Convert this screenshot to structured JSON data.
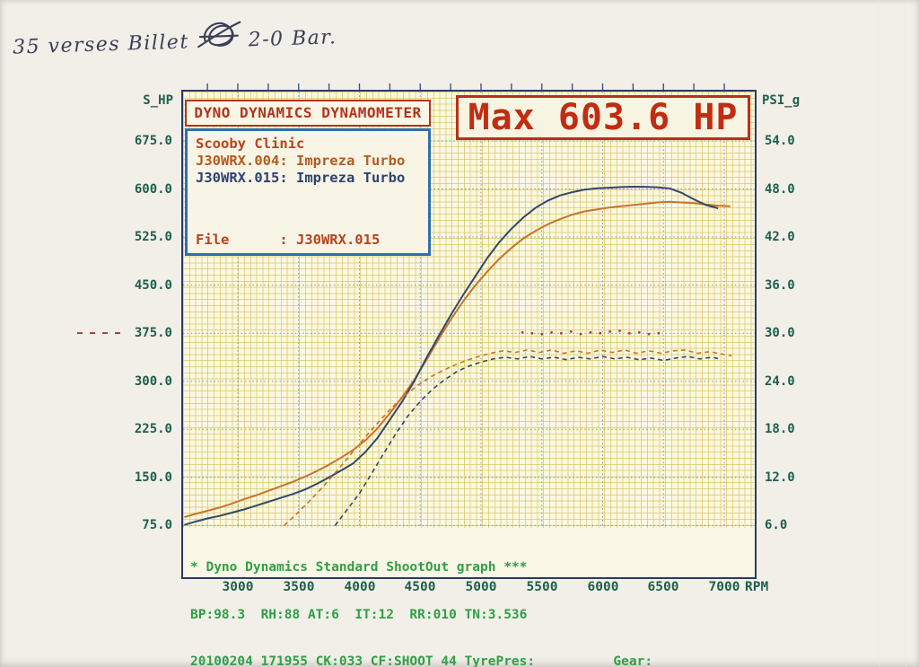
{
  "handwritten_note": {
    "before_scribble": "35 verses Billet",
    "after_scribble": "2-0 Bar."
  },
  "title_box": {
    "label": "DYNO DYNAMICS DYNAMOMETER"
  },
  "max_box": {
    "label": "Max 603.6 HP"
  },
  "legend": {
    "shop": "Scooby Clinic",
    "run1": "J30WRX.004: Impreza Turbo",
    "run2": "J30WRX.015: Impreza Turbo",
    "file_line": "File      : J30WRX.015"
  },
  "axes": {
    "left_title": "S_HP",
    "right_title": "PSI_g",
    "x_unit": "RPM"
  },
  "footer": {
    "line1": "* Dyno Dynamics Standard ShootOut graph ***",
    "line2": "BP:98.3  RH:88 AT:6  IT:12  RR:010 TN:3.536",
    "line3": "20100204 171955 CK:033 CF:SHOOT_44 TyrePres: ________ Gear: ________"
  },
  "colors": {
    "paper": "#f1efe8",
    "plot_bg": "#fbf8e2",
    "fine_grid": "#d5c156",
    "major_grid": "#7d92bf",
    "frame": "#2b3a66",
    "red": "#b5321c",
    "max_red": "#c22c12",
    "orange_curve": "#c8732a",
    "blue_curve": "#32486e",
    "axis_green": "#1e5f4e",
    "footer_green": "#2f9f47",
    "dot_red": "#b04030",
    "ink": "#3b3f58"
  },
  "chart_data": {
    "type": "line",
    "title": "Dyno Dynamics Standard ShootOut graph",
    "x_ticks": [
      3000,
      3500,
      4000,
      4500,
      5000,
      5500,
      6000,
      6500,
      7000
    ],
    "x_unit": "RPM",
    "left_axis": {
      "title": "S_HP",
      "ticks": [
        675,
        600,
        525,
        450,
        375,
        300,
        225,
        150,
        75
      ]
    },
    "right_axis": {
      "title": "PSI_g",
      "ticks": [
        54,
        48,
        42,
        36,
        30,
        24,
        18,
        12,
        6
      ]
    },
    "left_marker_hp": 375,
    "max_annotation_hp": 603.6,
    "series": [
      {
        "name": "J30WRX.004 power",
        "axis": "left",
        "style": "solid",
        "color_key": "orange_curve",
        "points": [
          [
            2560,
            88
          ],
          [
            2650,
            93
          ],
          [
            2750,
            98
          ],
          [
            2850,
            103
          ],
          [
            2950,
            109
          ],
          [
            3050,
            116
          ],
          [
            3150,
            122
          ],
          [
            3250,
            129
          ],
          [
            3350,
            136
          ],
          [
            3450,
            143
          ],
          [
            3550,
            151
          ],
          [
            3650,
            160
          ],
          [
            3750,
            170
          ],
          [
            3850,
            181
          ],
          [
            3950,
            193
          ],
          [
            4050,
            208
          ],
          [
            4150,
            227
          ],
          [
            4250,
            250
          ],
          [
            4350,
            275
          ],
          [
            4450,
            302
          ],
          [
            4550,
            333
          ],
          [
            4650,
            365
          ],
          [
            4750,
            396
          ],
          [
            4850,
            424
          ],
          [
            4950,
            449
          ],
          [
            5050,
            471
          ],
          [
            5150,
            491
          ],
          [
            5250,
            508
          ],
          [
            5350,
            523
          ],
          [
            5450,
            535
          ],
          [
            5550,
            545
          ],
          [
            5650,
            553
          ],
          [
            5750,
            560
          ],
          [
            5850,
            565
          ],
          [
            5950,
            568
          ],
          [
            6050,
            571
          ],
          [
            6150,
            573
          ],
          [
            6250,
            575
          ],
          [
            6350,
            577
          ],
          [
            6450,
            579
          ],
          [
            6550,
            580
          ],
          [
            6650,
            579
          ],
          [
            6750,
            578
          ],
          [
            6850,
            576
          ],
          [
            6950,
            574
          ],
          [
            7050,
            573
          ]
        ]
      },
      {
        "name": "J30WRX.015 power",
        "axis": "left",
        "style": "solid",
        "color_key": "blue_curve",
        "points": [
          [
            2560,
            76
          ],
          [
            2650,
            81
          ],
          [
            2750,
            86
          ],
          [
            2850,
            90
          ],
          [
            2950,
            95
          ],
          [
            3050,
            100
          ],
          [
            3150,
            106
          ],
          [
            3250,
            112
          ],
          [
            3350,
            118
          ],
          [
            3450,
            124
          ],
          [
            3550,
            131
          ],
          [
            3650,
            140
          ],
          [
            3750,
            150
          ],
          [
            3850,
            161
          ],
          [
            3950,
            172
          ],
          [
            4050,
            190
          ],
          [
            4150,
            212
          ],
          [
            4250,
            240
          ],
          [
            4350,
            268
          ],
          [
            4450,
            300
          ],
          [
            4550,
            336
          ],
          [
            4650,
            370
          ],
          [
            4750,
            403
          ],
          [
            4850,
            434
          ],
          [
            4950,
            463
          ],
          [
            5050,
            492
          ],
          [
            5150,
            517
          ],
          [
            5250,
            538
          ],
          [
            5350,
            556
          ],
          [
            5450,
            571
          ],
          [
            5550,
            582
          ],
          [
            5650,
            590
          ],
          [
            5750,
            595
          ],
          [
            5850,
            599
          ],
          [
            5950,
            601
          ],
          [
            6050,
            602
          ],
          [
            6150,
            603
          ],
          [
            6250,
            603.6
          ],
          [
            6350,
            603.4
          ],
          [
            6450,
            602.8
          ],
          [
            6550,
            601
          ],
          [
            6650,
            594
          ],
          [
            6750,
            584
          ],
          [
            6850,
            575
          ],
          [
            6950,
            570
          ]
        ]
      },
      {
        "name": "J30WRX.004 boost",
        "axis": "right",
        "style": "dashed",
        "color_key": "orange_curve",
        "points": [
          [
            3380,
            6
          ],
          [
            3480,
            7.4
          ],
          [
            3580,
            8.9
          ],
          [
            3680,
            10.5
          ],
          [
            3780,
            12.2
          ],
          [
            3880,
            14
          ],
          [
            3980,
            15.8
          ],
          [
            4080,
            17.6
          ],
          [
            4180,
            19.3
          ],
          [
            4280,
            20.9
          ],
          [
            4380,
            22.3
          ],
          [
            4480,
            23.5
          ],
          [
            4580,
            24.5
          ],
          [
            4680,
            25.3
          ],
          [
            4780,
            26
          ],
          [
            4880,
            26.6
          ],
          [
            4980,
            27.1
          ],
          [
            5080,
            27.5
          ],
          [
            5180,
            27.8
          ],
          [
            5280,
            27.6
          ],
          [
            5380,
            27.9
          ],
          [
            5480,
            27.6
          ],
          [
            5580,
            27.9
          ],
          [
            5680,
            27.5
          ],
          [
            5780,
            27.8
          ],
          [
            5880,
            27.5
          ],
          [
            5980,
            27.9
          ],
          [
            6080,
            27.6
          ],
          [
            6180,
            27.9
          ],
          [
            6280,
            27.5
          ],
          [
            6380,
            27.8
          ],
          [
            6480,
            27.5
          ],
          [
            6580,
            27.8
          ],
          [
            6680,
            27.9
          ],
          [
            6780,
            27.5
          ],
          [
            6880,
            27.7
          ],
          [
            6980,
            27.4
          ],
          [
            7060,
            27.2
          ]
        ]
      },
      {
        "name": "J30WRX.015 boost",
        "axis": "right",
        "style": "dashed",
        "color_key": "blue_curve",
        "points": [
          [
            3800,
            6
          ],
          [
            3900,
            8
          ],
          [
            4000,
            10
          ],
          [
            4100,
            12.5
          ],
          [
            4200,
            15
          ],
          [
            4300,
            17.5
          ],
          [
            4400,
            19.7
          ],
          [
            4500,
            21.5
          ],
          [
            4600,
            23
          ],
          [
            4700,
            24.2
          ],
          [
            4800,
            25.2
          ],
          [
            4900,
            25.9
          ],
          [
            5000,
            26.4
          ],
          [
            5100,
            26.8
          ],
          [
            5200,
            27
          ],
          [
            5300,
            26.8
          ],
          [
            5400,
            27.1
          ],
          [
            5500,
            26.8
          ],
          [
            5600,
            27
          ],
          [
            5700,
            26.7
          ],
          [
            5800,
            27
          ],
          [
            5900,
            26.8
          ],
          [
            6000,
            27.1
          ],
          [
            6100,
            26.8
          ],
          [
            6200,
            27
          ],
          [
            6300,
            26.7
          ],
          [
            6400,
            26.9
          ],
          [
            6500,
            26.6
          ],
          [
            6600,
            26.9
          ],
          [
            6700,
            27.1
          ],
          [
            6800,
            26.8
          ],
          [
            6900,
            27
          ],
          [
            6960,
            26.8
          ]
        ]
      },
      {
        "name": "boost reference dots",
        "axis": "right",
        "style": "dots",
        "color_key": "dot_red",
        "points": [
          [
            5340,
            30.1
          ],
          [
            5420,
            30.0
          ],
          [
            5500,
            29.9
          ],
          [
            5580,
            30.1
          ],
          [
            5660,
            30.0
          ],
          [
            5740,
            30.2
          ],
          [
            5820,
            29.9
          ],
          [
            5900,
            30.1
          ],
          [
            5980,
            30.0
          ],
          [
            6060,
            30.2
          ],
          [
            6140,
            30.3
          ],
          [
            6220,
            30.0
          ],
          [
            6300,
            30.1
          ],
          [
            6380,
            29.9
          ],
          [
            6460,
            30.0
          ]
        ]
      }
    ]
  }
}
